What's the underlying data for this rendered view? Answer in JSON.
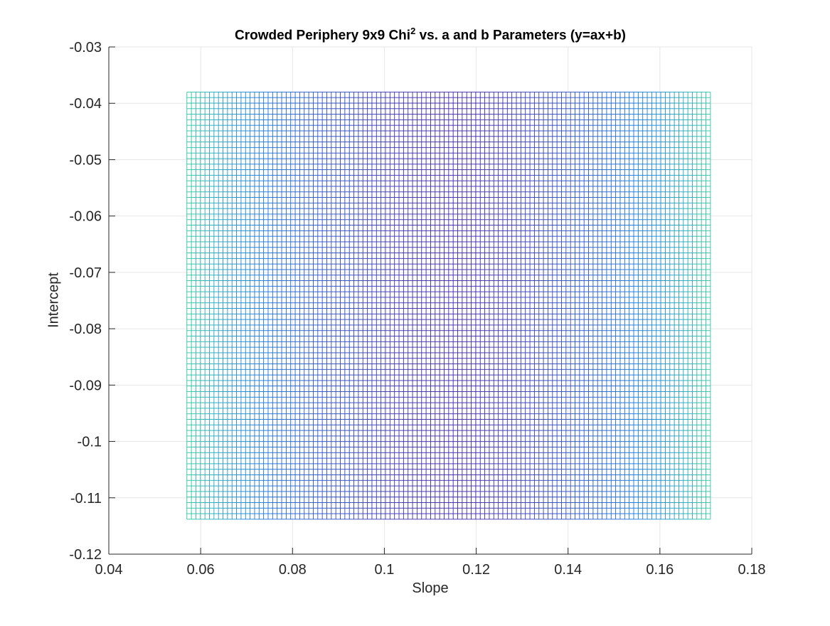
{
  "chart_data": {
    "type": "mesh",
    "title": "Crowded Periphery 9x9 Chi",
    "title_superscript": "2",
    "title_suffix": " vs. a and b Parameters (y=ax+b)",
    "xlabel": "Slope",
    "ylabel": "Intercept",
    "xlim": [
      0.04,
      0.18
    ],
    "ylim": [
      -0.12,
      -0.03
    ],
    "xticks": [
      0.04,
      0.06,
      0.08,
      0.1,
      0.12,
      0.14,
      0.16,
      0.18
    ],
    "yticks": [
      -0.12,
      -0.11,
      -0.1,
      -0.09,
      -0.08,
      -0.07,
      -0.06,
      -0.05,
      -0.04,
      -0.03
    ],
    "xtick_labels": [
      "0.04",
      "0.06",
      "0.08",
      "0.1",
      "0.12",
      "0.14",
      "0.16",
      "0.18"
    ],
    "ytick_labels": [
      "-0.12",
      "-0.11",
      "-0.1",
      "-0.09",
      "-0.08",
      "-0.07",
      "-0.06",
      "-0.05",
      "-0.04",
      "-0.03"
    ],
    "grid": true,
    "mesh": {
      "x_range": [
        0.057,
        0.171
      ],
      "y_range": [
        -0.1138,
        -0.038
      ],
      "nx": 116,
      "ny": 77,
      "colormap": "parula",
      "edge_color_center": "#3e26a8",
      "edge_color_edges": "#2ec6a0"
    }
  }
}
